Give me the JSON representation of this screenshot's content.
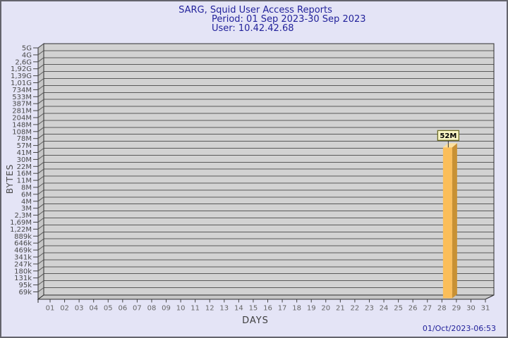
{
  "chart_data": {
    "type": "bar",
    "title": "SARG, Squid User Access Reports",
    "subtitle": "Period: 01 Sep 2023-30 Sep 2023",
    "user": "User: 10.42.42.68",
    "xlabel": "DAYS",
    "ylabel": "BYTES",
    "yscale": "log",
    "x_categories": [
      "01",
      "02",
      "03",
      "04",
      "05",
      "06",
      "07",
      "08",
      "09",
      "10",
      "11",
      "12",
      "13",
      "14",
      "15",
      "16",
      "17",
      "18",
      "19",
      "20",
      "21",
      "22",
      "23",
      "24",
      "25",
      "26",
      "27",
      "28",
      "29",
      "30",
      "31"
    ],
    "y_tick_labels": [
      "5G",
      "4G",
      "2,6G",
      "1,92G",
      "1,39G",
      "1,01G",
      "734M",
      "533M",
      "387M",
      "281M",
      "204M",
      "148M",
      "108M",
      "78M",
      "57M",
      "41M",
      "30M",
      "22M",
      "16M",
      "11M",
      "8M",
      "6M",
      "4M",
      "3M",
      "2,3M",
      "1,69M",
      "1,22M",
      "889k",
      "646k",
      "469k",
      "341k",
      "247k",
      "180k",
      "131k",
      "95k",
      "69k"
    ],
    "bars": [
      {
        "day": "29",
        "label": "52M",
        "value_bytes": 52000000
      }
    ],
    "legend": "none",
    "grid": "horizontal",
    "colors": {
      "page_bg": "#E4E4F6",
      "plot_bg": "#D2D2D2",
      "wall": "#C6C6C6",
      "grid": "#5A5A5A",
      "frame": "#2E2E2E",
      "tick": "#444444",
      "bar_front": "#FBBE5A",
      "bar_side": "#C89134",
      "bar_top": "#FDE09E",
      "value_box_bg": "#F8F4C4",
      "value_box_border": "#6E6E28",
      "value_text": "#000000",
      "title_text": "#22229B",
      "axis_text": "#4A4A4A",
      "day_text": "#666666",
      "timestamp_text": "#22229B"
    }
  },
  "footer": {
    "generated": "01/Oct/2023-06:53"
  }
}
